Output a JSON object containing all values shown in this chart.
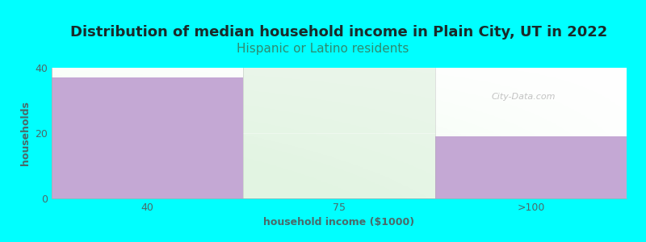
{
  "title": "Distribution of median household income in Plain City, UT in 2022",
  "subtitle": "Hispanic or Latino residents",
  "xlabel": "household income ($1000)",
  "ylabel": "households",
  "background_color": "#00FFFF",
  "categories": [
    "40",
    "75",
    ">100"
  ],
  "values": [
    37,
    0,
    19
  ],
  "bar_colors": [
    "#C4A8D4",
    "#D4ECD4",
    "#C4A8D4"
  ],
  "bar_alpha": [
    1.0,
    0.45,
    1.0
  ],
  "ylim": [
    0,
    40
  ],
  "yticks": [
    0,
    20,
    40
  ],
  "title_color": "#1a2a2a",
  "subtitle_color": "#2e8b70",
  "axis_color": "#4a6a6a",
  "title_fontsize": 13,
  "subtitle_fontsize": 11,
  "label_fontsize": 9,
  "watermark": "City-Data.com"
}
